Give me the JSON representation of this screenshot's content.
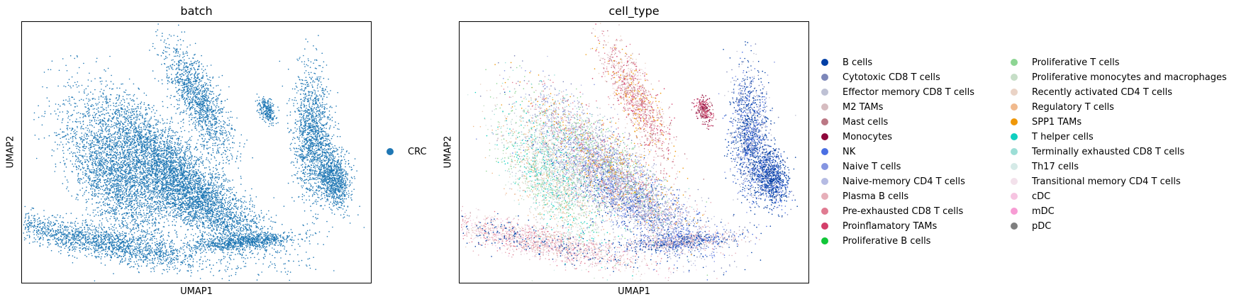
{
  "chart_data": [
    {
      "type": "scatter",
      "title": "batch",
      "xlabel": "UMAP1",
      "ylabel": "UMAP2",
      "legend_position": "right",
      "categories": [
        {
          "name": "CRC",
          "color": "#1f77b4"
        }
      ]
    },
    {
      "type": "scatter",
      "title": "cell_type",
      "xlabel": "UMAP1",
      "ylabel": "UMAP2",
      "legend_position": "right",
      "categories": [
        {
          "name": "B cells",
          "color": "#023fa5"
        },
        {
          "name": "Cytotoxic CD8 T cells",
          "color": "#7d87b9"
        },
        {
          "name": "Effector memory CD8 T cells",
          "color": "#bec1d4"
        },
        {
          "name": "M2 TAMs",
          "color": "#d6bcc0"
        },
        {
          "name": "Mast cells",
          "color": "#bb7784"
        },
        {
          "name": "Monocytes",
          "color": "#8e063b"
        },
        {
          "name": "NK",
          "color": "#4a6fe3"
        },
        {
          "name": "Naive T cells",
          "color": "#8595e1"
        },
        {
          "name": "Naive-memory CD4 T cells",
          "color": "#b5bbe3"
        },
        {
          "name": "Plasma B cells",
          "color": "#e6afb9"
        },
        {
          "name": "Pre-exhausted CD8 T cells",
          "color": "#e07b91"
        },
        {
          "name": "Proinflamatory TAMs",
          "color": "#d33f6a"
        },
        {
          "name": "Proliferative B cells",
          "color": "#11c638"
        },
        {
          "name": "Proliferative T cells",
          "color": "#8dd593"
        },
        {
          "name": "Proliferative monocytes and macrophages",
          "color": "#c6dec7"
        },
        {
          "name": "Recently activated CD4 T cells",
          "color": "#ead3c6"
        },
        {
          "name": "Regulatory T cells",
          "color": "#f0b98d"
        },
        {
          "name": "SPP1 TAMs",
          "color": "#ef9708"
        },
        {
          "name": "T helper cells",
          "color": "#0fcfc0"
        },
        {
          "name": "Terminally exhausted CD8 T cells",
          "color": "#9cded6"
        },
        {
          "name": "Th17 cells",
          "color": "#d5eae7"
        },
        {
          "name": "Transitional memory CD4 T cells",
          "color": "#f3e1eb"
        },
        {
          "name": "cDC",
          "color": "#f6c4e1"
        },
        {
          "name": "mDC",
          "color": "#f79cd4"
        },
        {
          "name": "pDC",
          "color": "#7f7f7f"
        }
      ]
    }
  ]
}
